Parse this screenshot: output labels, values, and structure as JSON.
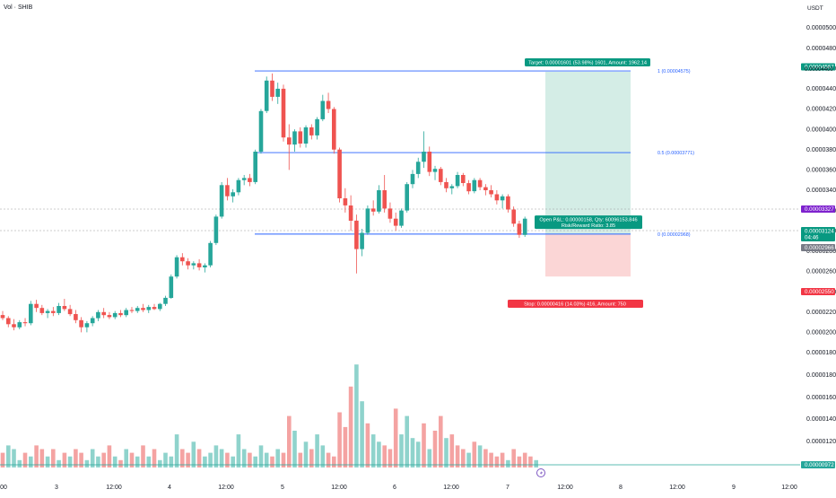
{
  "header": {
    "title": "Vol · SHIB"
  },
  "colors": {
    "up": "#26a69a",
    "down": "#ef5350",
    "vol_up": "#8fd3cc",
    "vol_down": "#f4a3a2",
    "fib_line": "#2962ff",
    "profit_fill": "#d4ede6",
    "loss_fill": "#fbd6d6",
    "target_badge": "#089981",
    "stop_badge": "#f23645",
    "last_price_badge": "#089981",
    "purple_badge": "#7e22ce",
    "grey_badge": "#787b86",
    "vol_badge": "#26a69a"
  },
  "chart_data": [
    {
      "type": "candlestick",
      "name": "SHIB/USDT price",
      "y_unit": "USDT",
      "ylim": [
        1.88e-05,
        5.18e-05
      ],
      "y_ticks": [
        "0.00005000",
        "0.00004800",
        "0.00004600",
        "0.00004400",
        "0.00004200",
        "0.00004000",
        "0.00003800",
        "0.00003600",
        "0.00003400",
        "0.00003200",
        "0.00003000",
        "0.00002800",
        "0.00002600",
        "0.00002400",
        "0.00002200",
        "0.00002000",
        "0.00001800"
      ],
      "x_ticks": [
        ":00",
        "3",
        "12:00",
        "4",
        "12:00",
        "5",
        "12:00",
        "6",
        "12:00",
        "7",
        "12:00",
        "8",
        "12:00",
        "9",
        "12:00"
      ],
      "candles": [
        {
          "o": 2.17e-05,
          "h": 2.21e-05,
          "l": 2.12e-05,
          "c": 2.14e-05
        },
        {
          "o": 2.14e-05,
          "h": 2.16e-05,
          "l": 2.05e-05,
          "c": 2.08e-05
        },
        {
          "o": 2.08e-05,
          "h": 2.13e-05,
          "l": 2.02e-05,
          "c": 2.05e-05
        },
        {
          "o": 2.05e-05,
          "h": 2.12e-05,
          "l": 2.03e-05,
          "c": 2.1e-05
        },
        {
          "o": 2.1e-05,
          "h": 2.14e-05,
          "l": 2.06e-05,
          "c": 2.09e-05
        },
        {
          "o": 2.09e-05,
          "h": 2.31e-05,
          "l": 2.07e-05,
          "c": 2.28e-05
        },
        {
          "o": 2.28e-05,
          "h": 2.32e-05,
          "l": 2.2e-05,
          "c": 2.24e-05
        },
        {
          "o": 2.24e-05,
          "h": 2.27e-05,
          "l": 2.17e-05,
          "c": 2.19e-05
        },
        {
          "o": 2.19e-05,
          "h": 2.23e-05,
          "l": 2.14e-05,
          "c": 2.21e-05
        },
        {
          "o": 2.21e-05,
          "h": 2.25e-05,
          "l": 2.16e-05,
          "c": 2.19e-05
        },
        {
          "o": 2.19e-05,
          "h": 2.29e-05,
          "l": 2.17e-05,
          "c": 2.26e-05
        },
        {
          "o": 2.26e-05,
          "h": 2.33e-05,
          "l": 2.21e-05,
          "c": 2.23e-05
        },
        {
          "o": 2.23e-05,
          "h": 2.27e-05,
          "l": 2.16e-05,
          "c": 2.18e-05
        },
        {
          "o": 2.18e-05,
          "h": 2.22e-05,
          "l": 2.09e-05,
          "c": 2.12e-05
        },
        {
          "o": 2.12e-05,
          "h": 2.15e-05,
          "l": 2e-05,
          "c": 2.05e-05
        },
        {
          "o": 2.05e-05,
          "h": 2.11e-05,
          "l": 2e-05,
          "c": 2.09e-05
        },
        {
          "o": 2.09e-05,
          "h": 2.16e-05,
          "l": 2.06e-05,
          "c": 2.14e-05
        },
        {
          "o": 2.14e-05,
          "h": 2.22e-05,
          "l": 2.11e-05,
          "c": 2.2e-05
        },
        {
          "o": 2.2e-05,
          "h": 2.24e-05,
          "l": 2.14e-05,
          "c": 2.17e-05
        },
        {
          "o": 2.17e-05,
          "h": 2.2e-05,
          "l": 2.13e-05,
          "c": 2.15e-05
        },
        {
          "o": 2.15e-05,
          "h": 2.21e-05,
          "l": 2.13e-05,
          "c": 2.19e-05
        },
        {
          "o": 2.19e-05,
          "h": 2.22e-05,
          "l": 2.15e-05,
          "c": 2.17e-05
        },
        {
          "o": 2.17e-05,
          "h": 2.24e-05,
          "l": 2.15e-05,
          "c": 2.22e-05
        },
        {
          "o": 2.22e-05,
          "h": 2.25e-05,
          "l": 2.19e-05,
          "c": 2.21e-05
        },
        {
          "o": 2.21e-05,
          "h": 2.26e-05,
          "l": 2.19e-05,
          "c": 2.24e-05
        },
        {
          "o": 2.24e-05,
          "h": 2.28e-05,
          "l": 2.2e-05,
          "c": 2.22e-05
        },
        {
          "o": 2.22e-05,
          "h": 2.27e-05,
          "l": 2.19e-05,
          "c": 2.25e-05
        },
        {
          "o": 2.25e-05,
          "h": 2.28e-05,
          "l": 2.22e-05,
          "c": 2.23e-05
        },
        {
          "o": 2.23e-05,
          "h": 2.29e-05,
          "l": 2.21e-05,
          "c": 2.28e-05
        },
        {
          "o": 2.28e-05,
          "h": 2.36e-05,
          "l": 2.26e-05,
          "c": 2.34e-05
        },
        {
          "o": 2.34e-05,
          "h": 2.57e-05,
          "l": 2.33e-05,
          "c": 2.55e-05
        },
        {
          "o": 2.55e-05,
          "h": 2.76e-05,
          "l": 2.53e-05,
          "c": 2.74e-05
        },
        {
          "o": 2.74e-05,
          "h": 2.78e-05,
          "l": 2.66e-05,
          "c": 2.7e-05
        },
        {
          "o": 2.7e-05,
          "h": 2.73e-05,
          "l": 2.62e-05,
          "c": 2.66e-05
        },
        {
          "o": 2.66e-05,
          "h": 2.7e-05,
          "l": 2.62e-05,
          "c": 2.68e-05
        },
        {
          "o": 2.68e-05,
          "h": 2.72e-05,
          "l": 2.61e-05,
          "c": 2.64e-05
        },
        {
          "o": 2.64e-05,
          "h": 2.68e-05,
          "l": 2.59e-05,
          "c": 2.66e-05
        },
        {
          "o": 2.66e-05,
          "h": 2.9e-05,
          "l": 2.64e-05,
          "c": 2.88e-05
        },
        {
          "o": 2.88e-05,
          "h": 3.16e-05,
          "l": 2.86e-05,
          "c": 3.14e-05
        },
        {
          "o": 3.14e-05,
          "h": 3.48e-05,
          "l": 3.12e-05,
          "c": 3.45e-05
        },
        {
          "o": 3.45e-05,
          "h": 3.52e-05,
          "l": 3.3e-05,
          "c": 3.34e-05
        },
        {
          "o": 3.34e-05,
          "h": 3.41e-05,
          "l": 3.28e-05,
          "c": 3.38e-05
        },
        {
          "o": 3.38e-05,
          "h": 3.52e-05,
          "l": 3.35e-05,
          "c": 3.5e-05
        },
        {
          "o": 3.5e-05,
          "h": 3.55e-05,
          "l": 3.45e-05,
          "c": 3.52e-05
        },
        {
          "o": 3.52e-05,
          "h": 3.56e-05,
          "l": 3.44e-05,
          "c": 3.48e-05
        },
        {
          "o": 3.48e-05,
          "h": 3.8e-05,
          "l": 3.46e-05,
          "c": 3.78e-05
        },
        {
          "o": 3.78e-05,
          "h": 4.2e-05,
          "l": 3.76e-05,
          "c": 4.18e-05
        },
        {
          "o": 4.18e-05,
          "h": 4.52e-05,
          "l": 4.16e-05,
          "c": 4.48e-05
        },
        {
          "o": 4.48e-05,
          "h": 4.55e-05,
          "l": 4.28e-05,
          "c": 4.32e-05
        },
        {
          "o": 4.32e-05,
          "h": 4.46e-05,
          "l": 4.25e-05,
          "c": 4.4e-05
        },
        {
          "o": 4.4e-05,
          "h": 4.44e-05,
          "l": 3.88e-05,
          "c": 3.92e-05
        },
        {
          "o": 3.92e-05,
          "h": 4.05e-05,
          "l": 3.6e-05,
          "c": 3.85e-05
        },
        {
          "o": 3.85e-05,
          "h": 4e-05,
          "l": 3.78e-05,
          "c": 3.98e-05
        },
        {
          "o": 3.98e-05,
          "h": 4.02e-05,
          "l": 3.82e-05,
          "c": 3.86e-05
        },
        {
          "o": 3.86e-05,
          "h": 4.04e-05,
          "l": 3.82e-05,
          "c": 4.02e-05
        },
        {
          "o": 4.02e-05,
          "h": 4.05e-05,
          "l": 3.9e-05,
          "c": 3.94e-05
        },
        {
          "o": 3.94e-05,
          "h": 4.12e-05,
          "l": 3.9e-05,
          "c": 4.1e-05
        },
        {
          "o": 4.1e-05,
          "h": 4.34e-05,
          "l": 4.08e-05,
          "c": 4.28e-05
        },
        {
          "o": 4.28e-05,
          "h": 4.36e-05,
          "l": 4.16e-05,
          "c": 4.2e-05
        },
        {
          "o": 4.2e-05,
          "h": 4.22e-05,
          "l": 3.76e-05,
          "c": 3.8e-05
        },
        {
          "o": 3.8e-05,
          "h": 3.82e-05,
          "l": 3.28e-05,
          "c": 3.32e-05
        },
        {
          "o": 3.32e-05,
          "h": 3.42e-05,
          "l": 3.18e-05,
          "c": 3.25e-05
        },
        {
          "o": 3.25e-05,
          "h": 3.35e-05,
          "l": 3e-05,
          "c": 3.1e-05
        },
        {
          "o": 3.1e-05,
          "h": 3.16e-05,
          "l": 2.58e-05,
          "c": 2.82e-05
        },
        {
          "o": 2.82e-05,
          "h": 3.02e-05,
          "l": 2.75e-05,
          "c": 2.98e-05
        },
        {
          "o": 2.98e-05,
          "h": 3.25e-05,
          "l": 2.96e-05,
          "c": 3.22e-05
        },
        {
          "o": 3.22e-05,
          "h": 3.3e-05,
          "l": 3.15e-05,
          "c": 3.19e-05
        },
        {
          "o": 3.19e-05,
          "h": 3.45e-05,
          "l": 3.17e-05,
          "c": 3.4e-05
        },
        {
          "o": 3.4e-05,
          "h": 3.55e-05,
          "l": 3.18e-05,
          "c": 3.22e-05
        },
        {
          "o": 3.22e-05,
          "h": 3.28e-05,
          "l": 3.08e-05,
          "c": 3.12e-05
        },
        {
          "o": 3.12e-05,
          "h": 3.18e-05,
          "l": 3e-05,
          "c": 3.05e-05
        },
        {
          "o": 3.05e-05,
          "h": 3.22e-05,
          "l": 3.03e-05,
          "c": 3.2e-05
        },
        {
          "o": 3.2e-05,
          "h": 3.48e-05,
          "l": 3.18e-05,
          "c": 3.46e-05
        },
        {
          "o": 3.46e-05,
          "h": 3.6e-05,
          "l": 3.42e-05,
          "c": 3.56e-05
        },
        {
          "o": 3.56e-05,
          "h": 3.72e-05,
          "l": 3.52e-05,
          "c": 3.68e-05
        },
        {
          "o": 3.68e-05,
          "h": 3.98e-05,
          "l": 3.62e-05,
          "c": 3.78e-05
        },
        {
          "o": 3.78e-05,
          "h": 3.83e-05,
          "l": 3.54e-05,
          "c": 3.58e-05
        },
        {
          "o": 3.58e-05,
          "h": 3.64e-05,
          "l": 3.5e-05,
          "c": 3.61e-05
        },
        {
          "o": 3.61e-05,
          "h": 3.63e-05,
          "l": 3.45e-05,
          "c": 3.48e-05
        },
        {
          "o": 3.48e-05,
          "h": 3.52e-05,
          "l": 3.38e-05,
          "c": 3.42e-05
        },
        {
          "o": 3.42e-05,
          "h": 3.46e-05,
          "l": 3.36e-05,
          "c": 3.44e-05
        },
        {
          "o": 3.44e-05,
          "h": 3.58e-05,
          "l": 3.42e-05,
          "c": 3.55e-05
        },
        {
          "o": 3.55e-05,
          "h": 3.57e-05,
          "l": 3.44e-05,
          "c": 3.47e-05
        },
        {
          "o": 3.47e-05,
          "h": 3.5e-05,
          "l": 3.36e-05,
          "c": 3.39e-05
        },
        {
          "o": 3.39e-05,
          "h": 3.52e-05,
          "l": 3.37e-05,
          "c": 3.5e-05
        },
        {
          "o": 3.5e-05,
          "h": 3.52e-05,
          "l": 3.4e-05,
          "c": 3.43e-05
        },
        {
          "o": 3.43e-05,
          "h": 3.46e-05,
          "l": 3.35e-05,
          "c": 3.4e-05
        },
        {
          "o": 3.4e-05,
          "h": 3.45e-05,
          "l": 3.33e-05,
          "c": 3.36e-05
        },
        {
          "o": 3.36e-05,
          "h": 3.4e-05,
          "l": 3.26e-05,
          "c": 3.3e-05
        },
        {
          "o": 3.3e-05,
          "h": 3.36e-05,
          "l": 3.22e-05,
          "c": 3.34e-05
        },
        {
          "o": 3.34e-05,
          "h": 3.36e-05,
          "l": 3.18e-05,
          "c": 3.21e-05
        },
        {
          "o": 3.21e-05,
          "h": 3.24e-05,
          "l": 3.04e-05,
          "c": 3.07e-05
        },
        {
          "o": 3.07e-05,
          "h": 3.1e-05,
          "l": 2.93e-05,
          "c": 2.96e-05
        },
        {
          "o": 2.96e-05,
          "h": 3.14e-05,
          "l": 2.94e-05,
          "c": 3.12e-05
        }
      ]
    },
    {
      "type": "bar",
      "name": "Volume",
      "y_ticks": [
        "0.00001800",
        "0.00001600",
        "0.00001400",
        "0.00001200",
        "0.00001000",
        "0.00000972"
      ],
      "values": [
        4,
        6,
        5,
        2,
        4,
        3,
        6,
        5,
        3,
        5,
        2,
        4,
        3,
        5,
        4,
        2,
        5,
        3,
        4,
        6,
        3,
        2,
        5,
        4,
        3,
        6,
        3,
        5,
        2,
        4,
        3,
        9,
        5,
        4,
        7,
        5,
        3,
        4,
        6,
        5,
        4,
        3,
        9,
        5,
        4,
        3,
        6,
        4,
        3,
        5,
        4,
        14,
        10,
        4,
        7,
        5,
        9,
        6,
        4,
        3,
        15,
        11,
        22,
        28,
        18,
        12,
        9,
        7,
        6,
        5,
        16,
        9,
        14,
        8,
        7,
        12,
        5,
        10,
        14,
        8,
        9,
        6,
        5,
        4,
        7,
        6,
        5,
        4,
        3,
        4,
        2,
        5,
        3,
        4,
        3,
        2
      ],
      "up": [
        false,
        true,
        true,
        true,
        false,
        true,
        false,
        false,
        true,
        false,
        true,
        false,
        true,
        false,
        false,
        true,
        true,
        true,
        false,
        false,
        true,
        false,
        true,
        false,
        true,
        false,
        true,
        false,
        true,
        true,
        true,
        true,
        false,
        false,
        true,
        false,
        true,
        true,
        true,
        true,
        false,
        true,
        true,
        true,
        false,
        true,
        true,
        true,
        false,
        true,
        false,
        false,
        true,
        false,
        true,
        false,
        true,
        true,
        false,
        false,
        false,
        false,
        false,
        true,
        true,
        false,
        true,
        true,
        false,
        false,
        false,
        true,
        true,
        true,
        true,
        false,
        true,
        false,
        false,
        true,
        false,
        false,
        false,
        true,
        false,
        true,
        false,
        false,
        false,
        false,
        true,
        false,
        false,
        false,
        false,
        true
      ]
    }
  ],
  "right_axis": {
    "unit_label": "USDT",
    "target_badge": "0.00004567",
    "fib1_badge": "0.00004400",
    "purple_badge": "0.00003327",
    "last_price_badge": "0.00003124",
    "countdown": "04:46",
    "grey_badge": "0.00002966",
    "stop_badge": "0.00002550",
    "vol_badge": "0.00000972"
  },
  "fib": [
    {
      "label": "1 (0.00004575)",
      "price": 4.575e-05
    },
    {
      "label": "0.5 (0.00003771)",
      "price": 3.771e-05
    },
    {
      "label": "0 (0.00002968)",
      "price": 2.968e-05
    }
  ],
  "position": {
    "entry": 2.966e-05,
    "target": 4.567e-05,
    "stop": 2.55e-05,
    "target_label": "Target: 0.00001601 (53.98%) 1601, Amount: 1962.14",
    "open_pnl_line": "Open P&L: 0.00000158, Qty: 60096153.846",
    "rr_line": "Risk/Reward Ratio: 3.85",
    "stop_label": "Stop: 0.00000416 (14.03%) 416, Amount: 750"
  }
}
